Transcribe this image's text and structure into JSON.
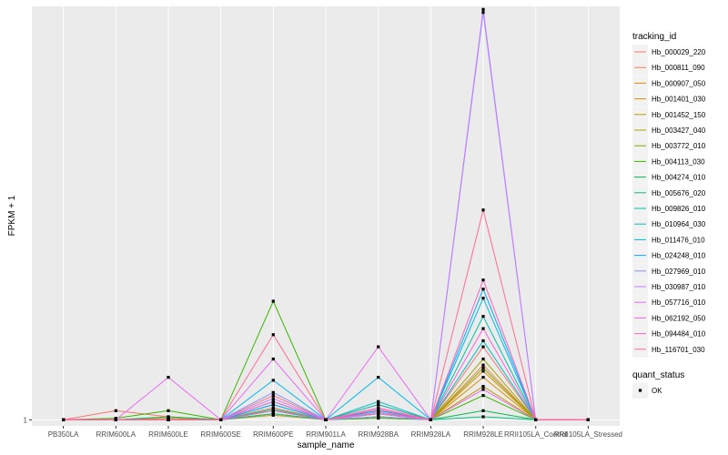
{
  "chart_data": {
    "type": "line",
    "xlabel": "sample_name",
    "ylabel": "FPKM + 1",
    "y_tick_labels": [
      "1"
    ],
    "ylim": [
      0.8,
      14.6
    ],
    "grid": true,
    "legend_position": "right",
    "categories": [
      "PB350LA",
      "RRIM600LA",
      "RRIM600LE",
      "RRIM600SE",
      "RRIM600PE",
      "RRIM901LA",
      "RRIM928BA",
      "RRIM928LA",
      "RRIM928LE",
      "RRII105LA_Control",
      "RRII105LA_Stressed"
    ],
    "series": [
      {
        "name": "Hb_000029_220",
        "color": "#F8766D",
        "values": [
          1,
          1.3,
          1.1,
          1,
          1.8,
          1,
          1.5,
          1,
          3.4,
          1,
          1
        ]
      },
      {
        "name": "Hb_000811_090",
        "color": "#F07E4B",
        "values": [
          1,
          1,
          1,
          1,
          1.4,
          1,
          1.2,
          1,
          2.8,
          1,
          1
        ]
      },
      {
        "name": "Hb_000907_050",
        "color": "#E38900",
        "values": [
          1,
          1,
          1,
          1,
          1.3,
          1,
          1.1,
          1,
          2.6,
          1,
          1
        ]
      },
      {
        "name": "Hb_001401_030",
        "color": "#D39200",
        "values": [
          1,
          1,
          1.05,
          1,
          1.2,
          1,
          1.2,
          1,
          2.4,
          1,
          1
        ]
      },
      {
        "name": "Hb_001452_150",
        "color": "#C09B00",
        "values": [
          1,
          1,
          1,
          1,
          1.15,
          1,
          1.1,
          1,
          2.1,
          1,
          1
        ]
      },
      {
        "name": "Hb_003427_040",
        "color": "#A3A500",
        "values": [
          1,
          1,
          1,
          1,
          1.3,
          1,
          1.2,
          1,
          3.0,
          1,
          1
        ]
      },
      {
        "name": "Hb_003772_010",
        "color": "#7CAE00",
        "values": [
          1,
          1,
          1,
          1,
          1.2,
          1,
          1.1,
          1,
          2.7,
          1,
          1
        ]
      },
      {
        "name": "Hb_004113_030",
        "color": "#39B600",
        "values": [
          1,
          1.05,
          1.3,
          1,
          4.9,
          1,
          1.05,
          1,
          1.8,
          1,
          1
        ]
      },
      {
        "name": "Hb_004274_010",
        "color": "#00BB4E",
        "values": [
          1,
          1,
          1.1,
          1,
          1.6,
          1,
          1.2,
          1,
          1.3,
          1,
          1
        ]
      },
      {
        "name": "Hb_005676_020",
        "color": "#00BF7D",
        "values": [
          1,
          1,
          1,
          1,
          1.5,
          1,
          1.3,
          1,
          1.1,
          1,
          1
        ]
      },
      {
        "name": "Hb_009826_010",
        "color": "#00C1A3",
        "values": [
          1,
          1,
          1,
          1,
          1.35,
          1,
          1.5,
          1,
          4.4,
          1,
          1
        ]
      },
      {
        "name": "Hb_010964_030",
        "color": "#00BFC4",
        "values": [
          1,
          1,
          1,
          1,
          1.2,
          1,
          1.6,
          1,
          3.6,
          1,
          1
        ]
      },
      {
        "name": "Hb_011476_010",
        "color": "#00B8E7",
        "values": [
          1,
          1,
          1,
          1,
          2.3,
          1,
          2.4,
          1,
          5.0,
          1,
          1
        ]
      },
      {
        "name": "Hb_024248_010",
        "color": "#00A9FF",
        "values": [
          1,
          1,
          1,
          1,
          1.5,
          1,
          1.3,
          1,
          5.3,
          1,
          1
        ]
      },
      {
        "name": "Hb_027969_010",
        "color": "#8494FF",
        "values": [
          1,
          1,
          1,
          1,
          1.9,
          1,
          1.1,
          1,
          14.4,
          1,
          1
        ]
      },
      {
        "name": "Hb_030987_010",
        "color": "#C77CFF",
        "values": [
          1,
          1,
          1,
          1,
          1.7,
          1,
          1.2,
          1,
          14.5,
          1,
          1
        ]
      },
      {
        "name": "Hb_057716_010",
        "color": "#E76BF3",
        "values": [
          1,
          1,
          2.4,
          1,
          3.0,
          1,
          3.4,
          1,
          2.0,
          1,
          1
        ]
      },
      {
        "name": "Hb_062192_050",
        "color": "#FA62DB",
        "values": [
          1,
          1,
          1,
          1,
          1.6,
          1,
          1.4,
          1,
          4.0,
          1,
          1
        ]
      },
      {
        "name": "Hb_094484_010",
        "color": "#FF62BC",
        "values": [
          1,
          1,
          1,
          1,
          1.3,
          1,
          1.25,
          1,
          5.6,
          1,
          1
        ]
      },
      {
        "name": "Hb_116701_030",
        "color": "#FF6C91",
        "values": [
          1,
          1,
          1,
          1,
          3.8,
          1,
          1.35,
          1,
          7.9,
          1,
          1
        ]
      }
    ],
    "legend": {
      "color_title": "tracking_id",
      "shape_title": "quant_status",
      "shape_items": [
        "OK"
      ]
    }
  }
}
